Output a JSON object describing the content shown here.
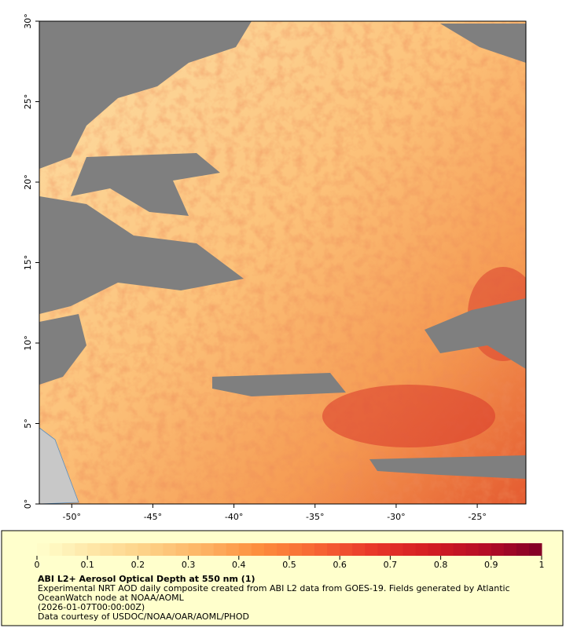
{
  "map": {
    "xlim": [
      -52,
      -22
    ],
    "ylim": [
      0,
      30
    ],
    "xticks": [
      {
        "value": -50,
        "label": "-50°"
      },
      {
        "value": -45,
        "label": "-45°"
      },
      {
        "value": -40,
        "label": "-40°"
      },
      {
        "value": -35,
        "label": "-35°"
      },
      {
        "value": -30,
        "label": "-30°"
      },
      {
        "value": -25,
        "label": "-25°"
      }
    ],
    "yticks": [
      {
        "value": 0,
        "label": "0°"
      },
      {
        "value": 5,
        "label": "5°"
      },
      {
        "value": 10,
        "label": "10°"
      },
      {
        "value": 15,
        "label": "15°"
      },
      {
        "value": 20,
        "label": "20°"
      },
      {
        "value": 25,
        "label": "25°"
      },
      {
        "value": 30,
        "label": "30°"
      }
    ]
  },
  "colorbar": {
    "range": [
      0,
      1
    ],
    "ticks": [
      0,
      0.1,
      0.2,
      0.3,
      0.4,
      0.5,
      0.6,
      0.7,
      0.8,
      0.9,
      1
    ],
    "colors": [
      "#ffffcc",
      "#fee6a6",
      "#fdd085",
      "#fdb263",
      "#fd8d3c",
      "#f76534",
      "#e8372a",
      "#d41d22",
      "#b50d26",
      "#800026"
    ]
  },
  "legend": {
    "title": "ABI L2+ Aerosol Optical Depth at 550 nm (1)",
    "lines": [
      "Experimental NRT AOD daily composite created from ABI L2 data from GOES-19. Fields generated by Atlantic",
      "OceanWatch node at NOAA/AOML",
      "(2026-01-07T00:00:00Z)",
      "Data courtesy of USDOC/NOAA/OAR/AOML/PHOD"
    ]
  }
}
